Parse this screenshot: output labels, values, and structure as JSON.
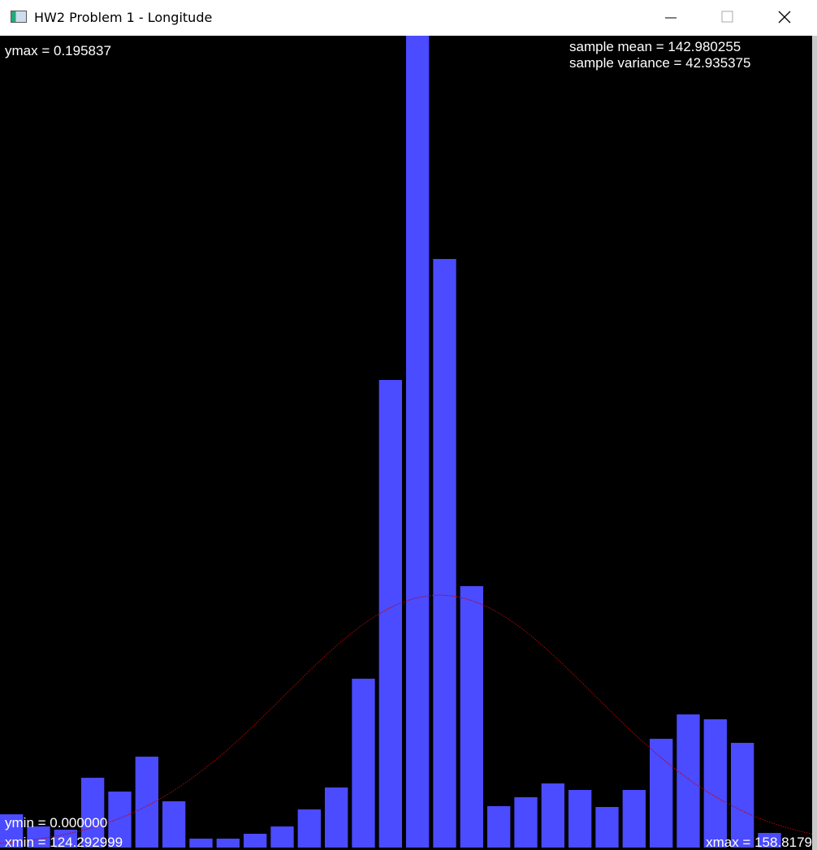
{
  "window": {
    "title": "HW2 Problem 1 - Longitude"
  },
  "chart_data": {
    "type": "histogram",
    "bins": [
      124.292999,
      125.4438,
      126.5947,
      127.7455,
      128.8963,
      130.0472,
      131.198,
      132.3488,
      133.4996,
      134.6505,
      135.8013,
      136.9521,
      138.103,
      139.2538,
      140.4046,
      141.5554,
      142.7063,
      143.8571,
      145.0079,
      146.1588,
      147.3096,
      148.4604,
      149.6113,
      150.7621,
      151.9129,
      153.0637,
      154.2146,
      155.3654,
      156.5162,
      157.6671,
      158.8179
    ],
    "values": [
      0.00803,
      0.00509,
      0.00431,
      0.01684,
      0.01351,
      0.02193,
      0.01116,
      0.00215,
      0.00215,
      0.00333,
      0.00509,
      0.0092,
      0.01449,
      0.04073,
      0.1128,
      0.195837,
      0.14198,
      0.06306,
      0.00999,
      0.01214,
      0.01547,
      0.0139,
      0.00979,
      0.0139,
      0.02624,
      0.03212,
      0.03094,
      0.02526,
      0.00353,
      0
    ],
    "color": "#4b4bff",
    "curve_color": "#c00000",
    "xlim": [
      124.292999,
      158.8179
    ],
    "ylim": [
      0,
      0.195837
    ],
    "xticks": [
      {
        "value": 124.292999,
        "label": "xmin = 124.292999"
      },
      {
        "value": 158.8179,
        "label": "xmax = 158.8179"
      }
    ],
    "yticks": [
      {
        "value": 0,
        "label": "ymin = 0.000000"
      },
      {
        "value": 0.195837,
        "label": "ymax = 0.195837"
      }
    ],
    "stats": [
      {
        "value": 142.980255,
        "label": "sample mean = 142.980255"
      },
      {
        "value": 42.935375,
        "label": "sample variance = 42.935375"
      }
    ]
  }
}
